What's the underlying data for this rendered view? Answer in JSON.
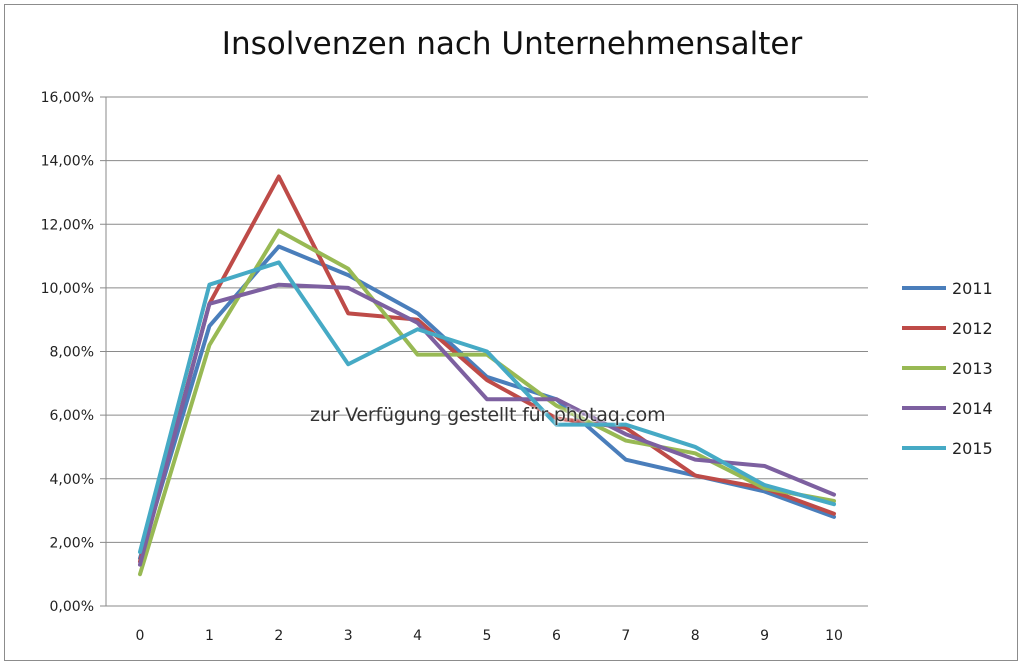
{
  "chart_data": {
    "type": "line",
    "title": "Insolvenzen nach Unternehmensalter",
    "xlabel": "",
    "ylabel": "",
    "x": [
      0,
      1,
      2,
      3,
      4,
      5,
      6,
      7,
      8,
      9,
      10
    ],
    "x_tick_labels": [
      "0",
      "1",
      "2",
      "3",
      "4",
      "5",
      "6",
      "7",
      "8",
      "9",
      "10"
    ],
    "ylim": [
      0,
      16
    ],
    "y_ticks": [
      0,
      2,
      4,
      6,
      8,
      10,
      12,
      14,
      16
    ],
    "y_tick_labels": [
      "0,00%",
      "2,00%",
      "4,00%",
      "6,00%",
      "8,00%",
      "10,00%",
      "12,00%",
      "14,00%",
      "16,00%"
    ],
    "grid": "horizontal",
    "legend_position": "right",
    "series": [
      {
        "name": "2011",
        "color": "#4a7ebb",
        "values": [
          1.5,
          8.8,
          11.3,
          10.4,
          9.2,
          7.2,
          6.5,
          4.6,
          4.1,
          3.6,
          2.8
        ]
      },
      {
        "name": "2012",
        "color": "#be4b48",
        "values": [
          1.4,
          9.5,
          13.5,
          9.2,
          9.0,
          7.1,
          5.9,
          5.6,
          4.1,
          3.7,
          2.9
        ]
      },
      {
        "name": "2013",
        "color": "#98b954",
        "values": [
          1.0,
          8.2,
          11.8,
          10.6,
          7.9,
          7.9,
          6.3,
          5.2,
          4.8,
          3.7,
          3.3
        ]
      },
      {
        "name": "2014",
        "color": "#7d60a0",
        "values": [
          1.3,
          9.5,
          10.1,
          10.0,
          8.9,
          6.5,
          6.5,
          5.4,
          4.6,
          4.4,
          3.5
        ]
      },
      {
        "name": "2015",
        "color": "#46aac5",
        "values": [
          1.7,
          10.1,
          10.8,
          7.6,
          8.7,
          8.0,
          5.7,
          5.7,
          5.0,
          3.8,
          3.2
        ]
      }
    ]
  },
  "watermark": "zur Verfügung gestellt für photaq.com"
}
